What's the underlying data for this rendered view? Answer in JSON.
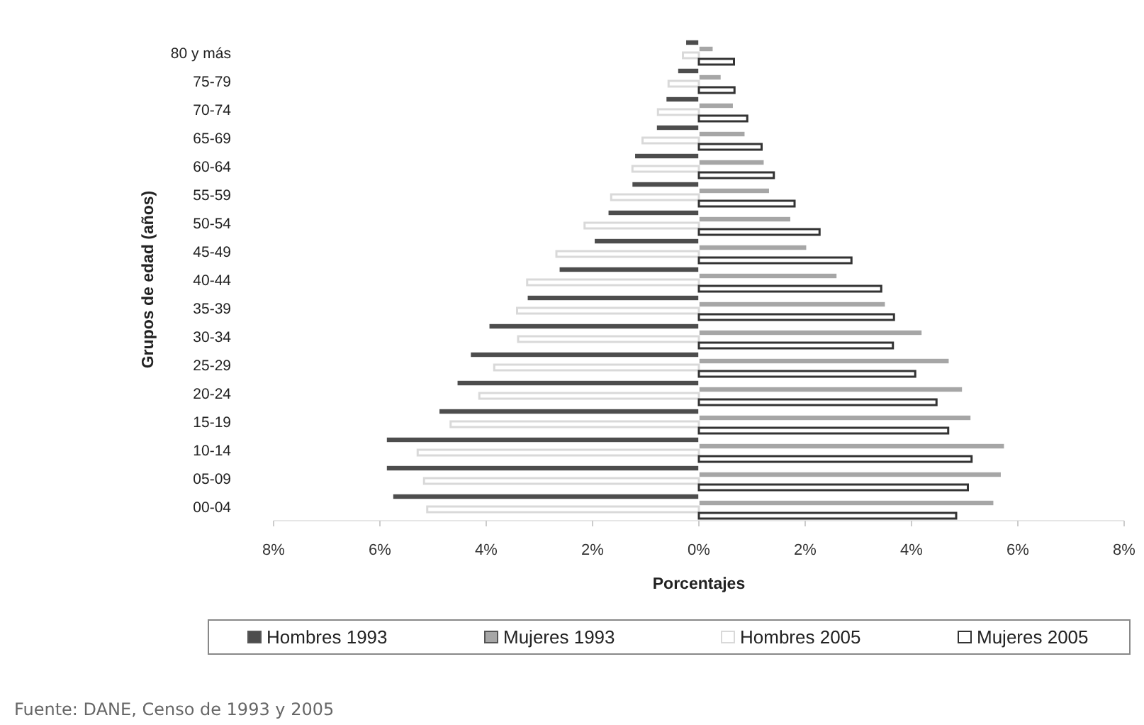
{
  "chart_data": {
    "type": "bar",
    "orientation": "horizontal",
    "ylabel": "Grupos de edad (años)",
    "xlabel": "Porcentajes",
    "categories": [
      "80 y más",
      "75-79",
      "70-74",
      "65-69",
      "60-64",
      "55-59",
      "50-54",
      "45-49",
      "40-44",
      "35-39",
      "30-34",
      "25-29",
      "20-24",
      "15-19",
      "10-14",
      "05-09",
      "00-04"
    ],
    "series": [
      {
        "name": "Hombres 1993",
        "color": "#4d4d4d",
        "values": [
          -0.25,
          -0.4,
          -0.62,
          -0.8,
          -1.21,
          -1.26,
          -1.71,
          -1.97,
          -2.63,
          -3.23,
          -3.95,
          -4.3,
          -4.55,
          -4.89,
          -5.88,
          -5.88,
          -5.76
        ]
      },
      {
        "name": "Mujeres 1993",
        "color": "#a6a6a6",
        "values": [
          0.27,
          0.42,
          0.65,
          0.87,
          1.23,
          1.33,
          1.73,
          2.03,
          2.6,
          3.51,
          4.2,
          4.71,
          4.96,
          5.12,
          5.75,
          5.69,
          5.55
        ]
      },
      {
        "name": "Hombres 2005",
        "color": "#d9d9d9",
        "values": [
          -0.3,
          -0.57,
          -0.77,
          -1.06,
          -1.25,
          -1.65,
          -2.15,
          -2.68,
          -3.23,
          -3.42,
          -3.4,
          -3.85,
          -4.13,
          -4.67,
          -5.29,
          -5.17,
          -5.11
        ]
      },
      {
        "name": "Mujeres 2005",
        "color": "#333333",
        "values": [
          0.66,
          0.67,
          0.91,
          1.18,
          1.41,
          1.8,
          2.27,
          2.87,
          3.43,
          3.67,
          3.65,
          4.07,
          4.47,
          4.69,
          5.13,
          5.06,
          4.84
        ]
      }
    ],
    "xlim": [
      -8,
      8
    ],
    "xticks": [
      {
        "value": -8,
        "label": "8%"
      },
      {
        "value": -6,
        "label": "6%"
      },
      {
        "value": -4,
        "label": "4%"
      },
      {
        "value": -2,
        "label": "2%"
      },
      {
        "value": 0,
        "label": "0%"
      },
      {
        "value": 2,
        "label": "2%"
      },
      {
        "value": 4,
        "label": "4%"
      },
      {
        "value": 6,
        "label": "6%"
      },
      {
        "value": 8,
        "label": "8%"
      }
    ],
    "grid": false,
    "legend": "bottom",
    "annotations": [
      "Fuente: DANE, Censo de 1993 y 2005"
    ]
  }
}
